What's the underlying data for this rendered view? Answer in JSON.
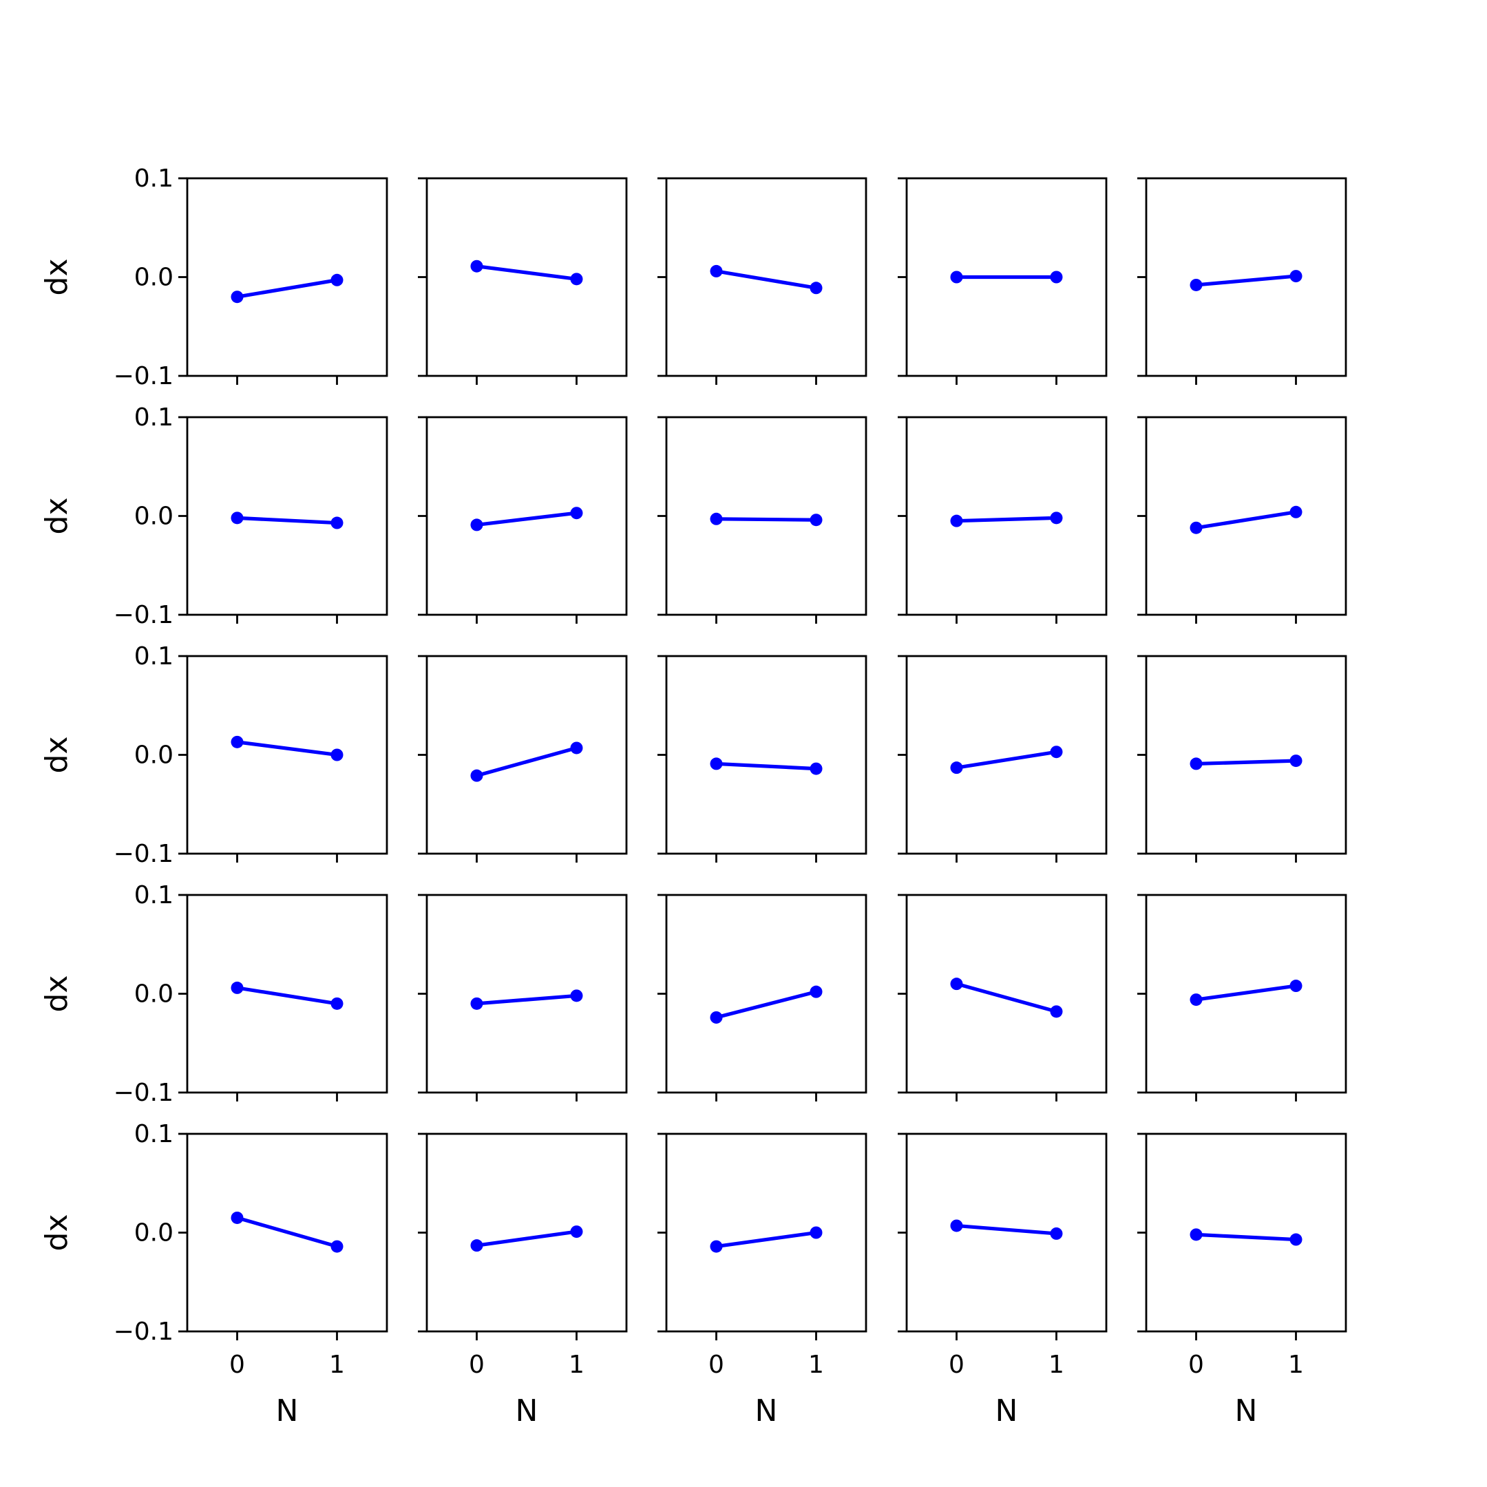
{
  "chart_data": {
    "type": "line",
    "layout": "small-multiples",
    "rows": 5,
    "cols": 5,
    "xlabel": "N",
    "ylabel": "dx",
    "x": [
      0,
      1
    ],
    "x_ticks": [
      0,
      1
    ],
    "x_tick_labels": [
      "0",
      "1"
    ],
    "xlim": [
      -0.5,
      1.5
    ],
    "ylim": [
      -0.1,
      0.1
    ],
    "y_ticks": [
      0.1,
      0.0,
      -0.1
    ],
    "y_tick_labels": [
      "0.1",
      "0.0",
      "−0.1"
    ],
    "grid": false,
    "legend": false,
    "series_color": "#0000ff",
    "marker": "circle",
    "panels": [
      {
        "row": 0,
        "col": 0,
        "values": [
          -0.02,
          -0.003
        ]
      },
      {
        "row": 0,
        "col": 1,
        "values": [
          0.011,
          -0.002
        ]
      },
      {
        "row": 0,
        "col": 2,
        "values": [
          0.006,
          -0.011
        ]
      },
      {
        "row": 0,
        "col": 3,
        "values": [
          0.0,
          0.0
        ]
      },
      {
        "row": 0,
        "col": 4,
        "values": [
          -0.008,
          0.001
        ]
      },
      {
        "row": 1,
        "col": 0,
        "values": [
          -0.002,
          -0.007
        ]
      },
      {
        "row": 1,
        "col": 1,
        "values": [
          -0.009,
          0.003
        ]
      },
      {
        "row": 1,
        "col": 2,
        "values": [
          -0.003,
          -0.004
        ]
      },
      {
        "row": 1,
        "col": 3,
        "values": [
          -0.005,
          -0.002
        ]
      },
      {
        "row": 1,
        "col": 4,
        "values": [
          -0.012,
          0.004
        ]
      },
      {
        "row": 2,
        "col": 0,
        "values": [
          0.013,
          0.0
        ]
      },
      {
        "row": 2,
        "col": 1,
        "values": [
          -0.021,
          0.007
        ]
      },
      {
        "row": 2,
        "col": 2,
        "values": [
          -0.009,
          -0.014
        ]
      },
      {
        "row": 2,
        "col": 3,
        "values": [
          -0.013,
          0.003
        ]
      },
      {
        "row": 2,
        "col": 4,
        "values": [
          -0.009,
          -0.006
        ]
      },
      {
        "row": 3,
        "col": 0,
        "values": [
          0.006,
          -0.01
        ]
      },
      {
        "row": 3,
        "col": 1,
        "values": [
          -0.01,
          -0.002
        ]
      },
      {
        "row": 3,
        "col": 2,
        "values": [
          -0.024,
          0.002
        ]
      },
      {
        "row": 3,
        "col": 3,
        "values": [
          0.01,
          -0.018
        ]
      },
      {
        "row": 3,
        "col": 4,
        "values": [
          -0.006,
          0.008
        ]
      },
      {
        "row": 4,
        "col": 0,
        "values": [
          0.015,
          -0.014
        ]
      },
      {
        "row": 4,
        "col": 1,
        "values": [
          -0.013,
          0.001
        ]
      },
      {
        "row": 4,
        "col": 2,
        "values": [
          -0.014,
          0.0
        ]
      },
      {
        "row": 4,
        "col": 3,
        "values": [
          0.007,
          -0.001
        ]
      },
      {
        "row": 4,
        "col": 4,
        "values": [
          -0.002,
          -0.007
        ]
      }
    ]
  }
}
